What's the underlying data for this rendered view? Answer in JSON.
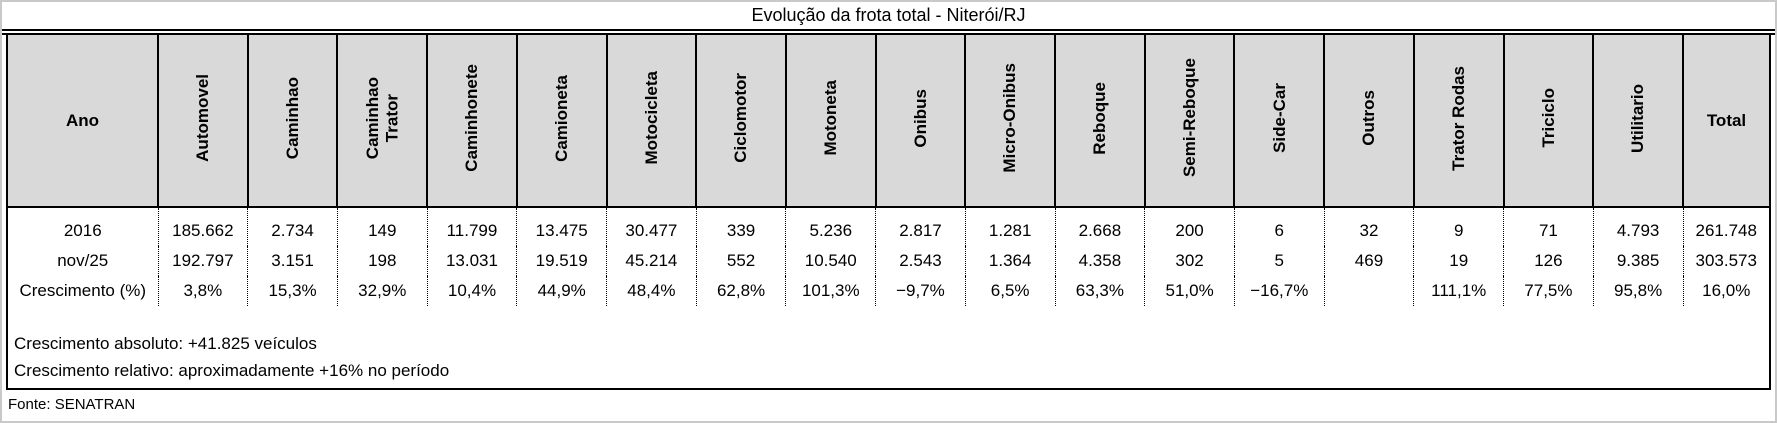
{
  "chart_data": {
    "type": "table",
    "title": "Evolução da frota total - Niterói/RJ",
    "columns": [
      "Ano",
      "Automovel",
      "Caminhao",
      "Caminhao\nTrator",
      "Caminhonete",
      "Camioneta",
      "Motocicleta",
      "Ciclomotor",
      "Motoneta",
      "Onibus",
      "Micro-Onibus",
      "Reboque",
      "Semi-Reboque",
      "Side-Car",
      "Outros",
      "Trator Rodas",
      "Triciclo",
      "Utilitario",
      "Total"
    ],
    "rows": [
      {
        "label": "2016",
        "values": [
          "185.662",
          "2.734",
          "149",
          "11.799",
          "13.475",
          "30.477",
          "339",
          "5.236",
          "2.817",
          "1.281",
          "2.668",
          "200",
          "6",
          "32",
          "9",
          "71",
          "4.793",
          "261.748"
        ]
      },
      {
        "label": "nov/25",
        "values": [
          "192.797",
          "3.151",
          "198",
          "13.031",
          "19.519",
          "45.214",
          "552",
          "10.540",
          "2.543",
          "1.364",
          "4.358",
          "302",
          "5",
          "469",
          "19",
          "126",
          "9.385",
          "303.573"
        ]
      },
      {
        "label": "Crescimento (%)",
        "values": [
          "3,8%",
          "15,3%",
          "32,9%",
          "10,4%",
          "44,9%",
          "48,4%",
          "62,8%",
          "101,3%",
          "−9,7%",
          "6,5%",
          "63,3%",
          "51,0%",
          "−16,7%",
          "",
          "111,1%",
          "77,5%",
          "95,8%",
          "16,0%"
        ]
      }
    ],
    "layout": {
      "header_orientation": "vertical",
      "grid": "solid-header-dotted-body"
    }
  },
  "notes": [
    "Crescimento absoluto: +41.825 veículos",
    "Crescimento relativo: aproximadamente +16% no período"
  ],
  "source": "Fonte: SENATRAN",
  "colors": {
    "header_bg": "#d9d9d9",
    "table_border": "#000000",
    "page_border": "#c9c9c9",
    "text": "#000000"
  }
}
